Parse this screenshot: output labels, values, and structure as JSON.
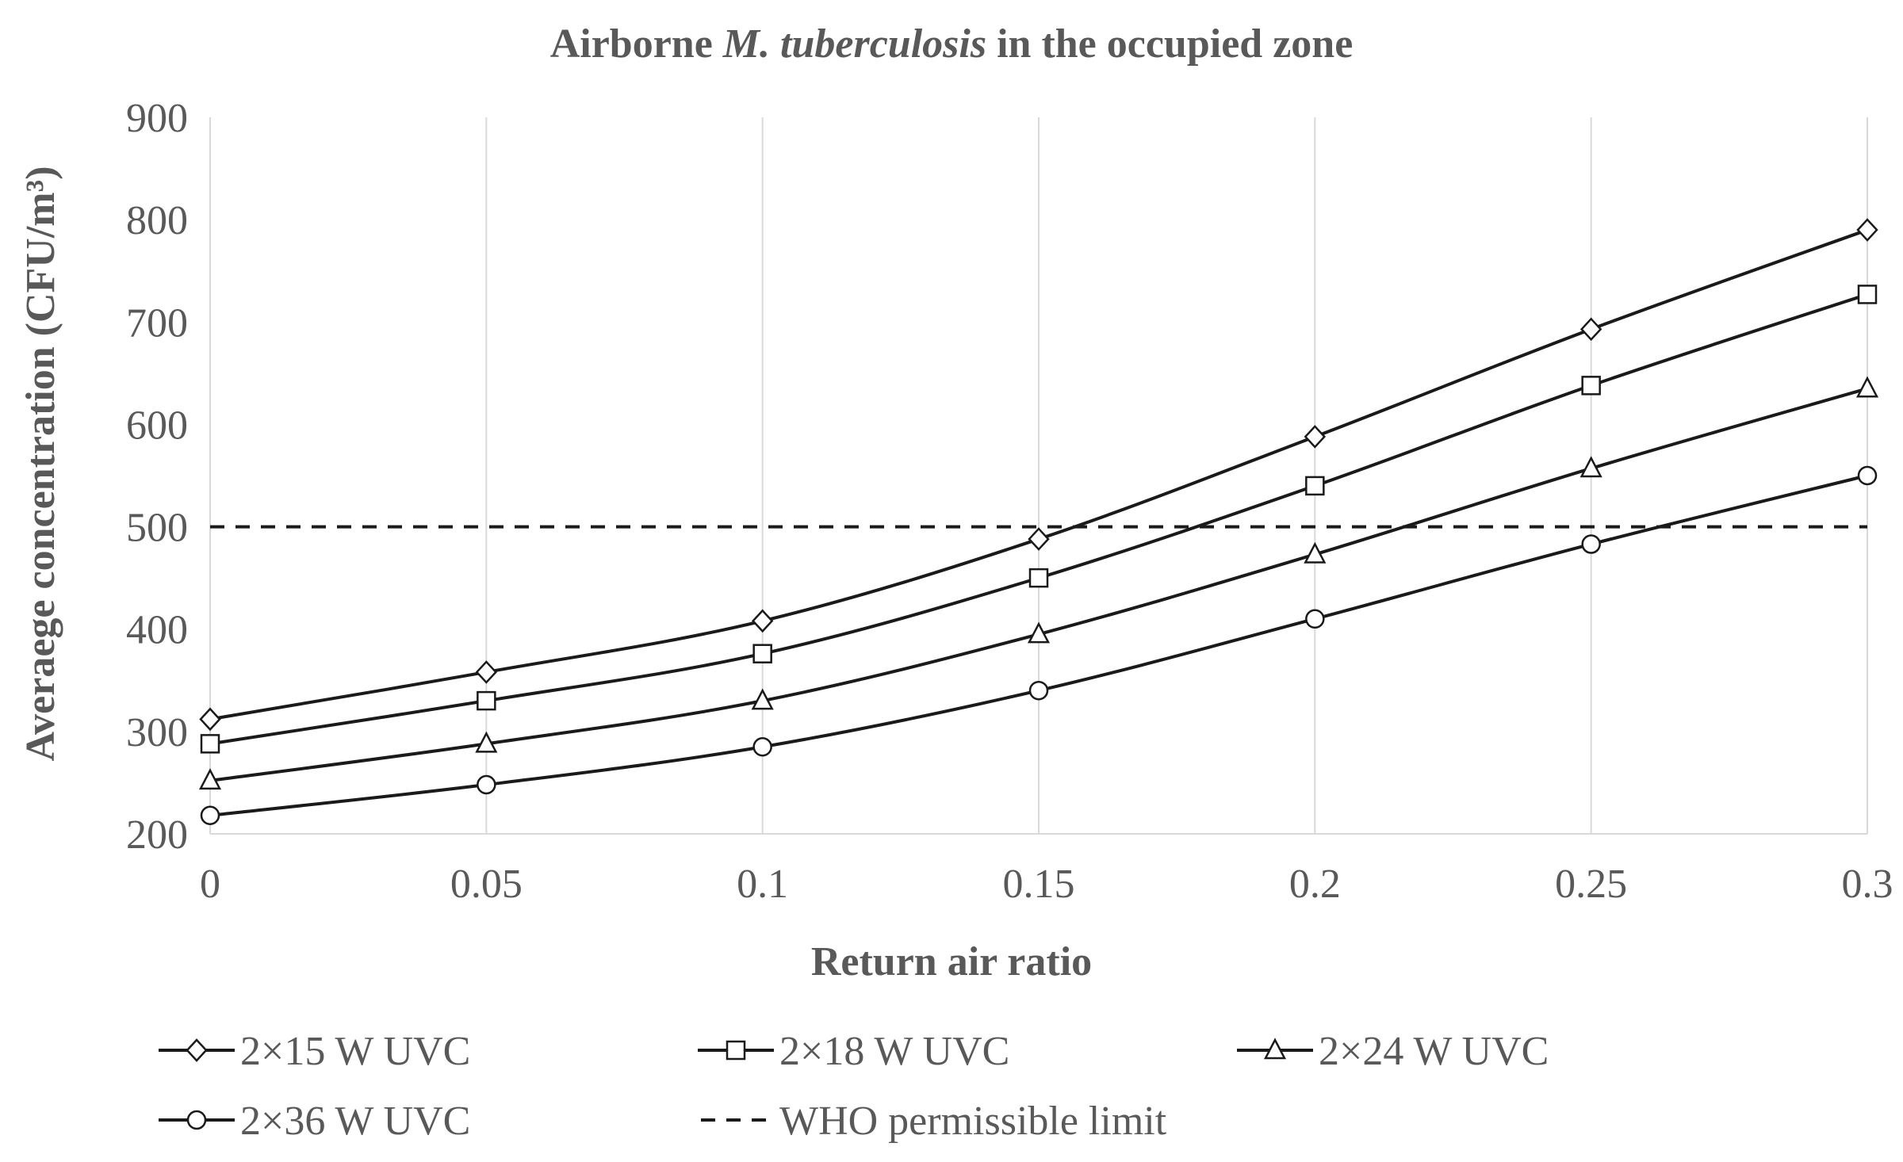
{
  "chart_data": {
    "type": "line",
    "title_prefix": "Airborne ",
    "title_italic": "M. tuberculosis",
    "title_suffix": " in the occupied zone",
    "xlabel": "Return air ratio",
    "ylabel": "Averaege concentration (CFU/m³)",
    "x": [
      0,
      0.05,
      0.1,
      0.15,
      0.2,
      0.25,
      0.3
    ],
    "x_tick_labels": [
      "0",
      "0.05",
      "0.1",
      "0.15",
      "0.2",
      "0.25",
      "0.3"
    ],
    "xlim": [
      0,
      0.3
    ],
    "ylim": [
      200,
      900
    ],
    "y_ticks": [
      200,
      300,
      400,
      500,
      600,
      700,
      800,
      900
    ],
    "y_tick_labels": [
      "200",
      "300",
      "400",
      "500",
      "600",
      "700",
      "800",
      "900"
    ],
    "grid": "vertical-only",
    "legend_position": "bottom",
    "series": [
      {
        "name": "2×15 W UVC",
        "marker": "diamond",
        "values": [
          312,
          358,
          408,
          488,
          588,
          693,
          790
        ]
      },
      {
        "name": "2×18 W UVC",
        "marker": "square",
        "values": [
          288,
          330,
          376,
          450,
          540,
          638,
          727
        ]
      },
      {
        "name": "2×24 W UVC",
        "marker": "triangle",
        "values": [
          252,
          288,
          330,
          395,
          473,
          557,
          635
        ]
      },
      {
        "name": "2×36 W UVC",
        "marker": "circle",
        "values": [
          218,
          248,
          285,
          340,
          410,
          483,
          550
        ]
      }
    ],
    "reference_line": {
      "name": "WHO permissible limit",
      "value": 500,
      "style": "dashed"
    }
  }
}
